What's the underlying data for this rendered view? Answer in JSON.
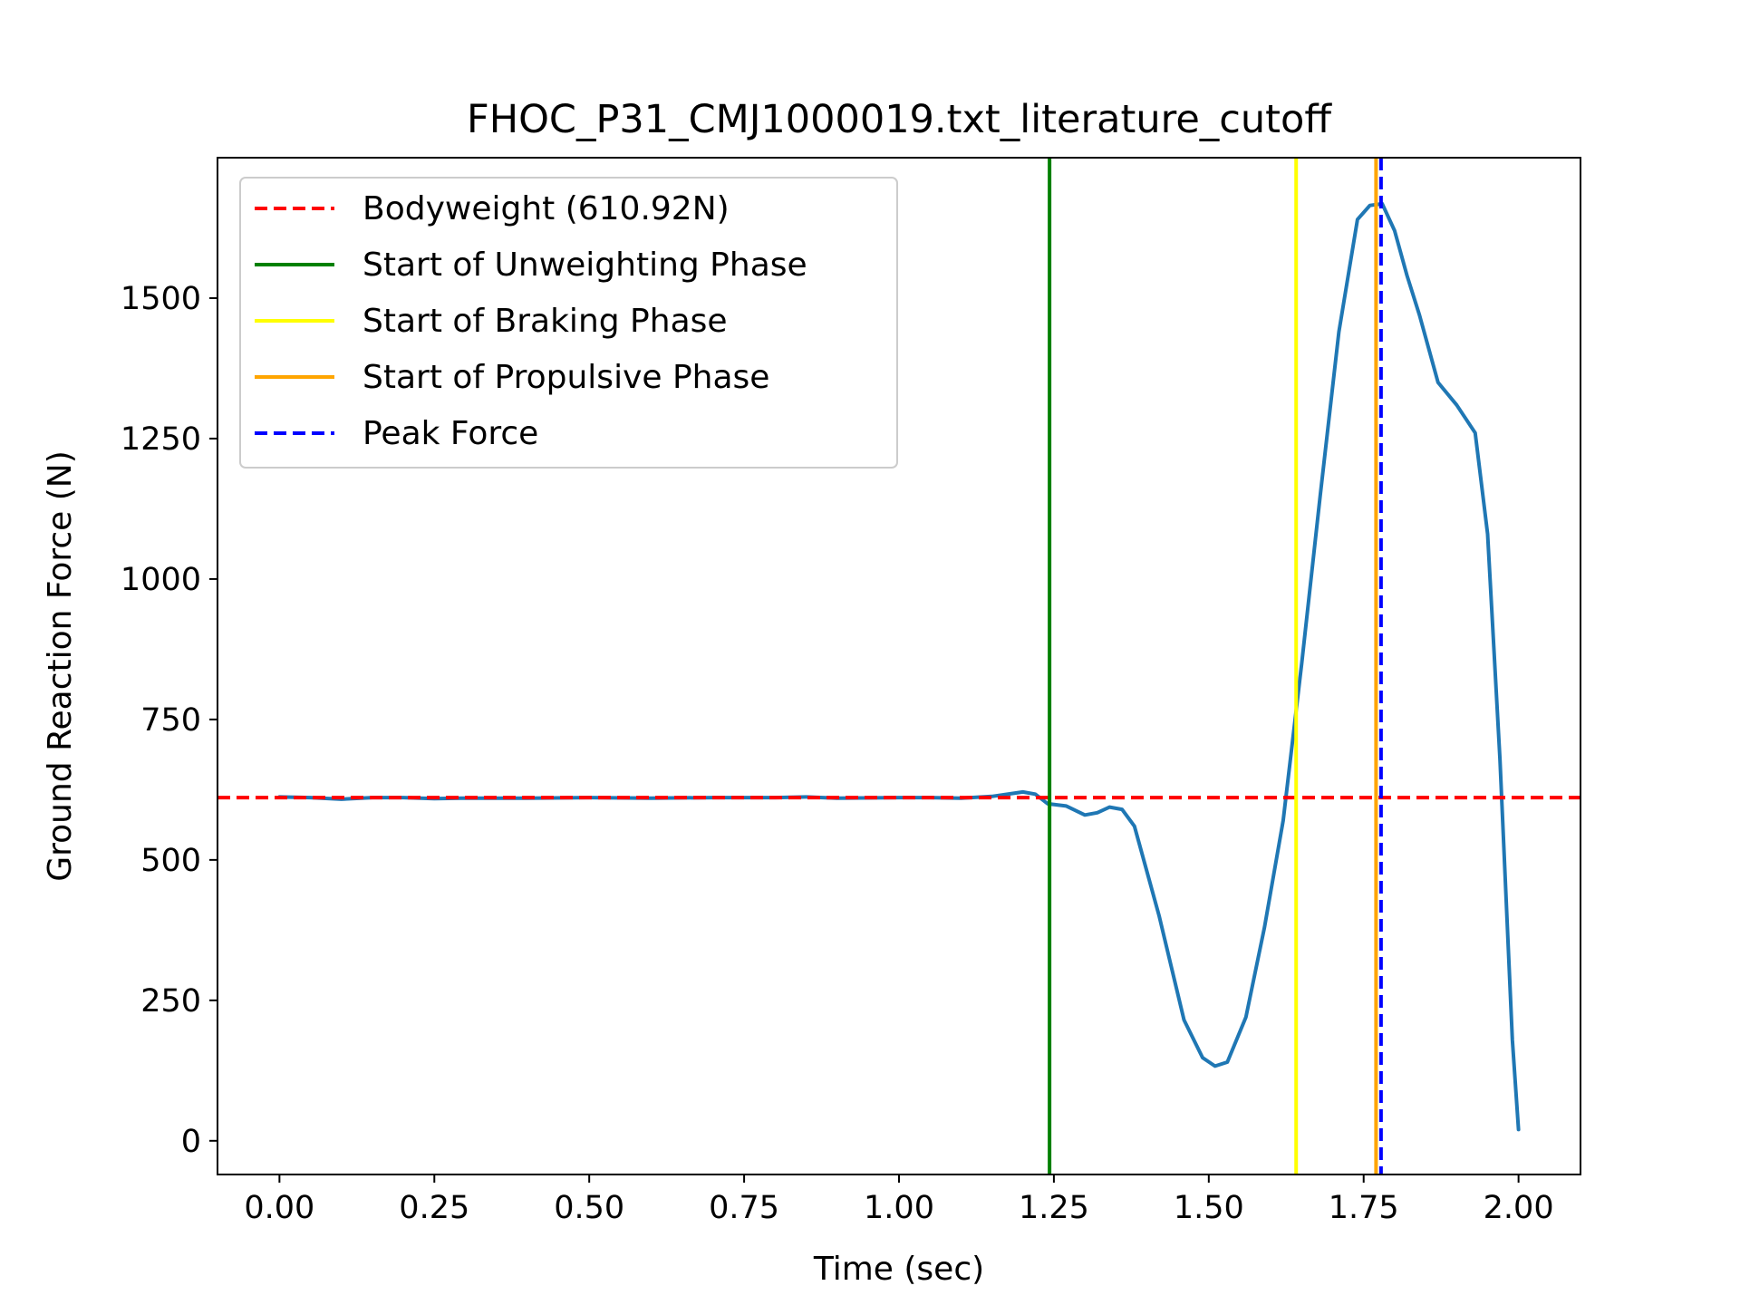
{
  "chart_data": {
    "type": "line",
    "title": "FHOC_P31_CMJ1000019.txt_literature_cutoff",
    "xlabel": "Time (sec)",
    "ylabel": "Ground Reaction Force (N)",
    "xlim": [
      -0.1,
      2.1
    ],
    "ylim": [
      -60,
      1750
    ],
    "xticks": [
      0.0,
      0.25,
      0.5,
      0.75,
      1.0,
      1.25,
      1.5,
      1.75,
      2.0
    ],
    "xtick_labels": [
      "0.00",
      "0.25",
      "0.50",
      "0.75",
      "1.00",
      "1.25",
      "1.50",
      "1.75",
      "2.00"
    ],
    "yticks": [
      0,
      250,
      500,
      750,
      1000,
      1250,
      1500
    ],
    "ytick_labels": [
      "0",
      "250",
      "500",
      "750",
      "1000",
      "1250",
      "1500"
    ],
    "grid": false,
    "legend_position": "top-left",
    "series": [
      {
        "color": "#1f77b4",
        "x": [
          0.0,
          0.05,
          0.1,
          0.15,
          0.2,
          0.25,
          0.3,
          0.4,
          0.5,
          0.6,
          0.7,
          0.8,
          0.85,
          0.9,
          1.0,
          1.05,
          1.1,
          1.15,
          1.2,
          1.22,
          1.24,
          1.27,
          1.3,
          1.32,
          1.34,
          1.36,
          1.38,
          1.42,
          1.46,
          1.49,
          1.51,
          1.53,
          1.56,
          1.59,
          1.62,
          1.65,
          1.68,
          1.71,
          1.74,
          1.76,
          1.78,
          1.8,
          1.82,
          1.84,
          1.87,
          1.9,
          1.93,
          1.95,
          1.97,
          1.99,
          2.0
        ],
        "y": [
          612,
          611,
          608,
          611,
          611,
          609,
          610,
          610,
          611,
          610,
          611,
          611,
          612,
          610,
          611,
          611,
          610,
          613,
          621,
          617,
          600,
          596,
          580,
          584,
          594,
          590,
          560,
          400,
          215,
          148,
          133,
          140,
          220,
          380,
          570,
          850,
          1150,
          1440,
          1640,
          1665,
          1668,
          1620,
          1540,
          1470,
          1350,
          1310,
          1260,
          1080,
          680,
          180,
          20
        ]
      }
    ],
    "reference_lines": [
      {
        "label": "Bodyweight (610.92N)",
        "orientation": "horizontal",
        "value": 610.92,
        "color": "#ff0000",
        "style": "dashed"
      },
      {
        "label": "Start of Unweighting Phase",
        "orientation": "vertical",
        "value": 1.243,
        "color": "#008000",
        "style": "solid"
      },
      {
        "label": "Start of Braking Phase",
        "orientation": "vertical",
        "value": 1.641,
        "color": "#ffff00",
        "style": "solid"
      },
      {
        "label": "Start of Propulsive Phase",
        "orientation": "vertical",
        "value": 1.77,
        "color": "#ffa500",
        "style": "solid"
      },
      {
        "label": "Peak Force",
        "orientation": "vertical",
        "value": 1.778,
        "color": "#0000ff",
        "style": "dashed"
      }
    ]
  }
}
